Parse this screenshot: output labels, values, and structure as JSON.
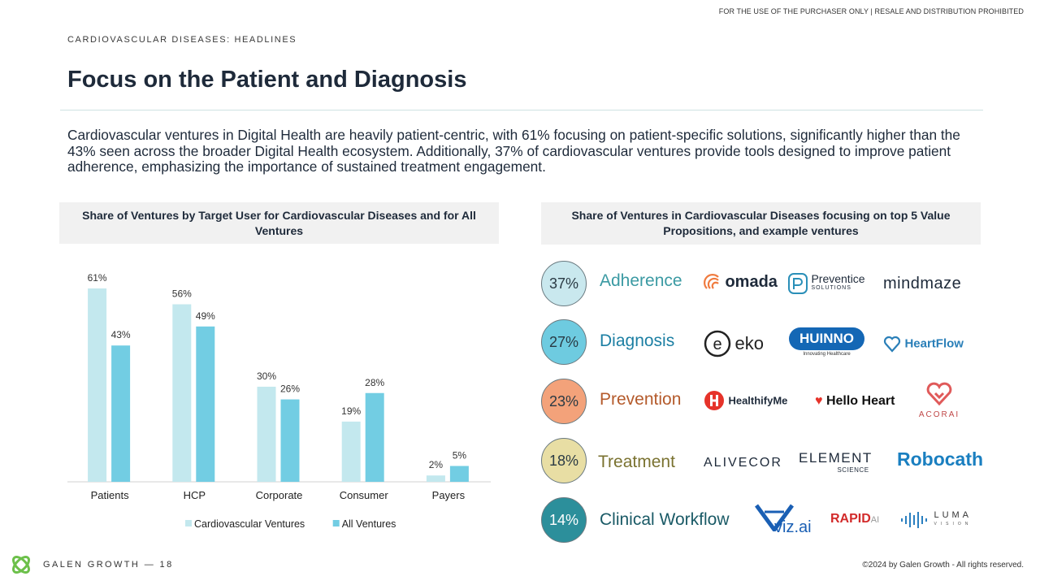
{
  "header": {
    "disclaimer": "FOR THE USE OF THE PURCHASER ONLY | RESALE AND DISTRIBUTION PROHIBITED",
    "section_label": "CARDIOVASCULAR DISEASES: HEADLINES",
    "title": "Focus on the Patient and Diagnosis"
  },
  "intro": "Cardiovascular ventures in Digital Health are heavily patient-centric, with 61% focusing on patient-specific solutions, significantly higher than the 43% seen across the broader Digital Health ecosystem. Additionally, 37% of cardiovascular ventures provide tools designed to improve patient adherence, emphasizing the importance of sustained treatment engagement.",
  "chart_data": {
    "type": "bar",
    "title": "Share of Ventures by Target User for Cardiovascular Diseases and for All Ventures",
    "categories": [
      "Patients",
      "HCP",
      "Corporate",
      "Consumer",
      "Payers"
    ],
    "series": [
      {
        "name": "Cardiovascular Ventures",
        "values": [
          61,
          56,
          30,
          19,
          2
        ],
        "labels": [
          "61%",
          "56%",
          "30%",
          "19%",
          "2%"
        ],
        "color": "#c3e8ee"
      },
      {
        "name": "All Ventures",
        "values": [
          43,
          49,
          26,
          28,
          5
        ],
        "labels": [
          "43%",
          "49%",
          "26%",
          "28%",
          "5%"
        ],
        "color": "#72cde3"
      }
    ],
    "ylim": [
      0,
      61
    ],
    "grid": false,
    "legend_position": "bottom"
  },
  "value_props": {
    "title": "Share of Ventures in Cardiovascular Diseases focusing on top 5 Value Propositions, and example ventures",
    "items": [
      {
        "pct": "37%",
        "label": "Adherence",
        "circle_color": "#c9e8ee",
        "text_color": "#3b9aa3",
        "logos": [
          "omada",
          "Preventice",
          "SOLUTIONS",
          "mindmaze"
        ]
      },
      {
        "pct": "27%",
        "label": "Diagnosis",
        "circle_color": "#6ecbe0",
        "text_color": "#1c7fa3",
        "logos": [
          "eko",
          "HUINNO",
          "Innovating Healthcare",
          "HeartFlow"
        ]
      },
      {
        "pct": "23%",
        "label": "Prevention",
        "circle_color": "#f3a27a",
        "text_color": "#b45a2b",
        "logos": [
          "HealthifyMe",
          "Hello Heart",
          "ACORAI"
        ]
      },
      {
        "pct": "18%",
        "label": "Treatment",
        "circle_color": "#e8dea4",
        "text_color": "#7a7230",
        "logos": [
          "ALIVECOR",
          "ELEMENT",
          "SCIENCE",
          "Robocath"
        ]
      },
      {
        "pct": "14%",
        "label": "Clinical Workflow",
        "circle_color": "#2c8f9b",
        "text_color": "#1a5a66",
        "logos": [
          "viz.ai",
          "RAPID",
          "AI",
          "LUMA",
          "VISION"
        ]
      }
    ]
  },
  "footer": {
    "brand": "GALEN GROWTH — 18",
    "copyright": "©2024 by Galen Growth - All rights reserved."
  }
}
